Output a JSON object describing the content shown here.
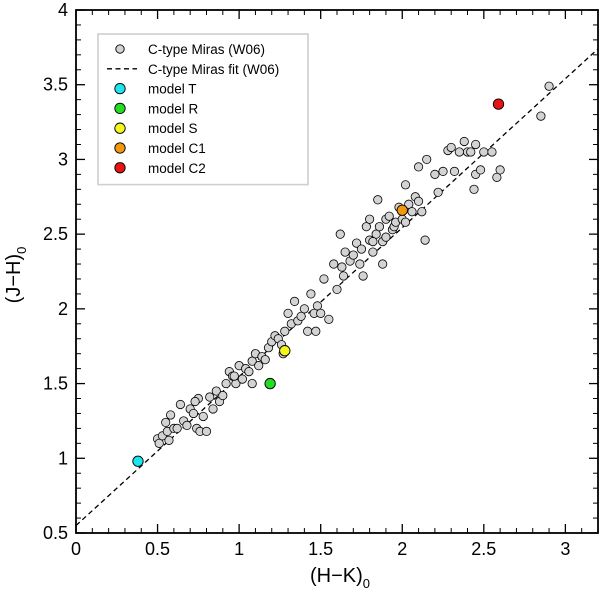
{
  "chart_data": {
    "type": "scatter",
    "xlabel": "(H−K)",
    "xlabel_sub": "0",
    "ylabel": "(J−H)",
    "ylabel_sub": "0",
    "xlim": [
      0,
      3.2
    ],
    "ylim": [
      0.5,
      4
    ],
    "x_ticks": [
      "0",
      "0.5",
      "1",
      "1.5",
      "2",
      "2.5",
      "3"
    ],
    "x_tick_values": [
      0,
      0.5,
      1,
      1.5,
      2,
      2.5,
      3
    ],
    "y_ticks": [
      "0.5",
      "1",
      "1.5",
      "2",
      "2.5",
      "3",
      "3.5",
      "4"
    ],
    "y_tick_values": [
      0.5,
      1,
      1.5,
      2,
      2.5,
      3,
      3.5,
      4
    ],
    "legend_position": "top-left",
    "series": [
      {
        "name": "C-type Miras (W06)",
        "kind": "points",
        "color": "#d3d3d3",
        "x": [
          0.5,
          0.51,
          0.53,
          0.55,
          0.56,
          0.58,
          0.6,
          0.62,
          0.64,
          0.66,
          0.68,
          0.7,
          0.72,
          0.74,
          0.75,
          0.76,
          0.78,
          0.82,
          0.84,
          0.86,
          0.88,
          0.9,
          0.92,
          0.94,
          0.96,
          0.98,
          1.0,
          1.02,
          1.04,
          1.06,
          1.08,
          1.1,
          1.12,
          1.14,
          1.16,
          1.18,
          1.2,
          1.22,
          1.24,
          1.26,
          1.28,
          1.3,
          1.32,
          1.34,
          1.36,
          1.38,
          1.4,
          1.42,
          1.44,
          1.46,
          1.48,
          1.5,
          1.52,
          1.55,
          1.58,
          1.6,
          1.62,
          1.63,
          1.65,
          1.68,
          1.7,
          1.72,
          1.74,
          1.75,
          1.76,
          1.78,
          1.8,
          1.8,
          1.82,
          1.84,
          1.85,
          1.86,
          1.88,
          1.9,
          1.9,
          1.92,
          1.94,
          1.95,
          1.96,
          1.98,
          2.0,
          2.02,
          2.04,
          2.06,
          2.08,
          2.1,
          2.1,
          2.12,
          2.15,
          2.2,
          2.22,
          2.25,
          2.28,
          2.3,
          2.32,
          2.35,
          2.38,
          2.4,
          2.42,
          2.44,
          2.45,
          2.48,
          2.5,
          2.55,
          2.58,
          2.6,
          2.85,
          2.9,
          0.73,
          0.8,
          0.97,
          1.27,
          1.64,
          1.82,
          2.02,
          2.45,
          0.57,
          1.08,
          1.47,
          1.88,
          2.14
        ],
        "y": [
          1.13,
          1.1,
          1.15,
          1.24,
          1.18,
          1.29,
          1.2,
          1.2,
          1.36,
          1.25,
          1.22,
          1.33,
          1.3,
          1.2,
          1.4,
          1.18,
          1.28,
          1.41,
          1.33,
          1.45,
          1.38,
          1.42,
          1.5,
          1.58,
          1.55,
          1.5,
          1.62,
          1.53,
          1.6,
          1.58,
          1.65,
          1.7,
          1.62,
          1.68,
          1.66,
          1.74,
          1.78,
          1.82,
          1.8,
          1.76,
          1.85,
          1.97,
          1.9,
          2.05,
          1.92,
          1.95,
          2.0,
          1.85,
          2.1,
          1.97,
          2.02,
          1.97,
          2.2,
          1.93,
          2.3,
          2.13,
          2.5,
          2.28,
          2.38,
          2.32,
          2.36,
          2.44,
          2.3,
          2.4,
          2.22,
          2.55,
          2.46,
          2.6,
          2.38,
          2.5,
          2.73,
          2.55,
          2.45,
          2.6,
          2.48,
          2.62,
          2.53,
          2.55,
          2.58,
          2.68,
          2.6,
          2.83,
          2.7,
          2.65,
          2.75,
          2.72,
          2.95,
          2.65,
          3.0,
          2.9,
          2.78,
          2.92,
          3.06,
          3.08,
          2.92,
          3.05,
          3.12,
          3.05,
          3.05,
          2.8,
          2.9,
          2.93,
          3.05,
          3.05,
          2.88,
          2.93,
          3.29,
          3.49,
          1.38,
          1.18,
          1.55,
          1.7,
          2.22,
          2.45,
          2.58,
          3.1,
          1.12,
          1.5,
          1.85,
          2.3,
          2.46
        ]
      },
      {
        "name": "C-type Miras fit (W06)",
        "kind": "dashed-line",
        "color": "#000000",
        "x": [
          0,
          3.2
        ],
        "y": [
          0.55,
          3.74
        ]
      },
      {
        "name": "model T",
        "kind": "point",
        "color": "#1ee4ee",
        "x": [
          0.38
        ],
        "y": [
          0.98
        ]
      },
      {
        "name": "model R",
        "kind": "point",
        "color": "#22dd22",
        "x": [
          1.19
        ],
        "y": [
          1.5
        ]
      },
      {
        "name": "model S",
        "kind": "point",
        "color": "#f5f51e",
        "x": [
          1.28
        ],
        "y": [
          1.72
        ]
      },
      {
        "name": "model C1",
        "kind": "point",
        "color": "#f5960f",
        "x": [
          2.0
        ],
        "y": [
          2.66
        ]
      },
      {
        "name": "model C2",
        "kind": "point",
        "color": "#e81414",
        "x": [
          2.59
        ],
        "y": [
          3.37
        ]
      }
    ]
  }
}
